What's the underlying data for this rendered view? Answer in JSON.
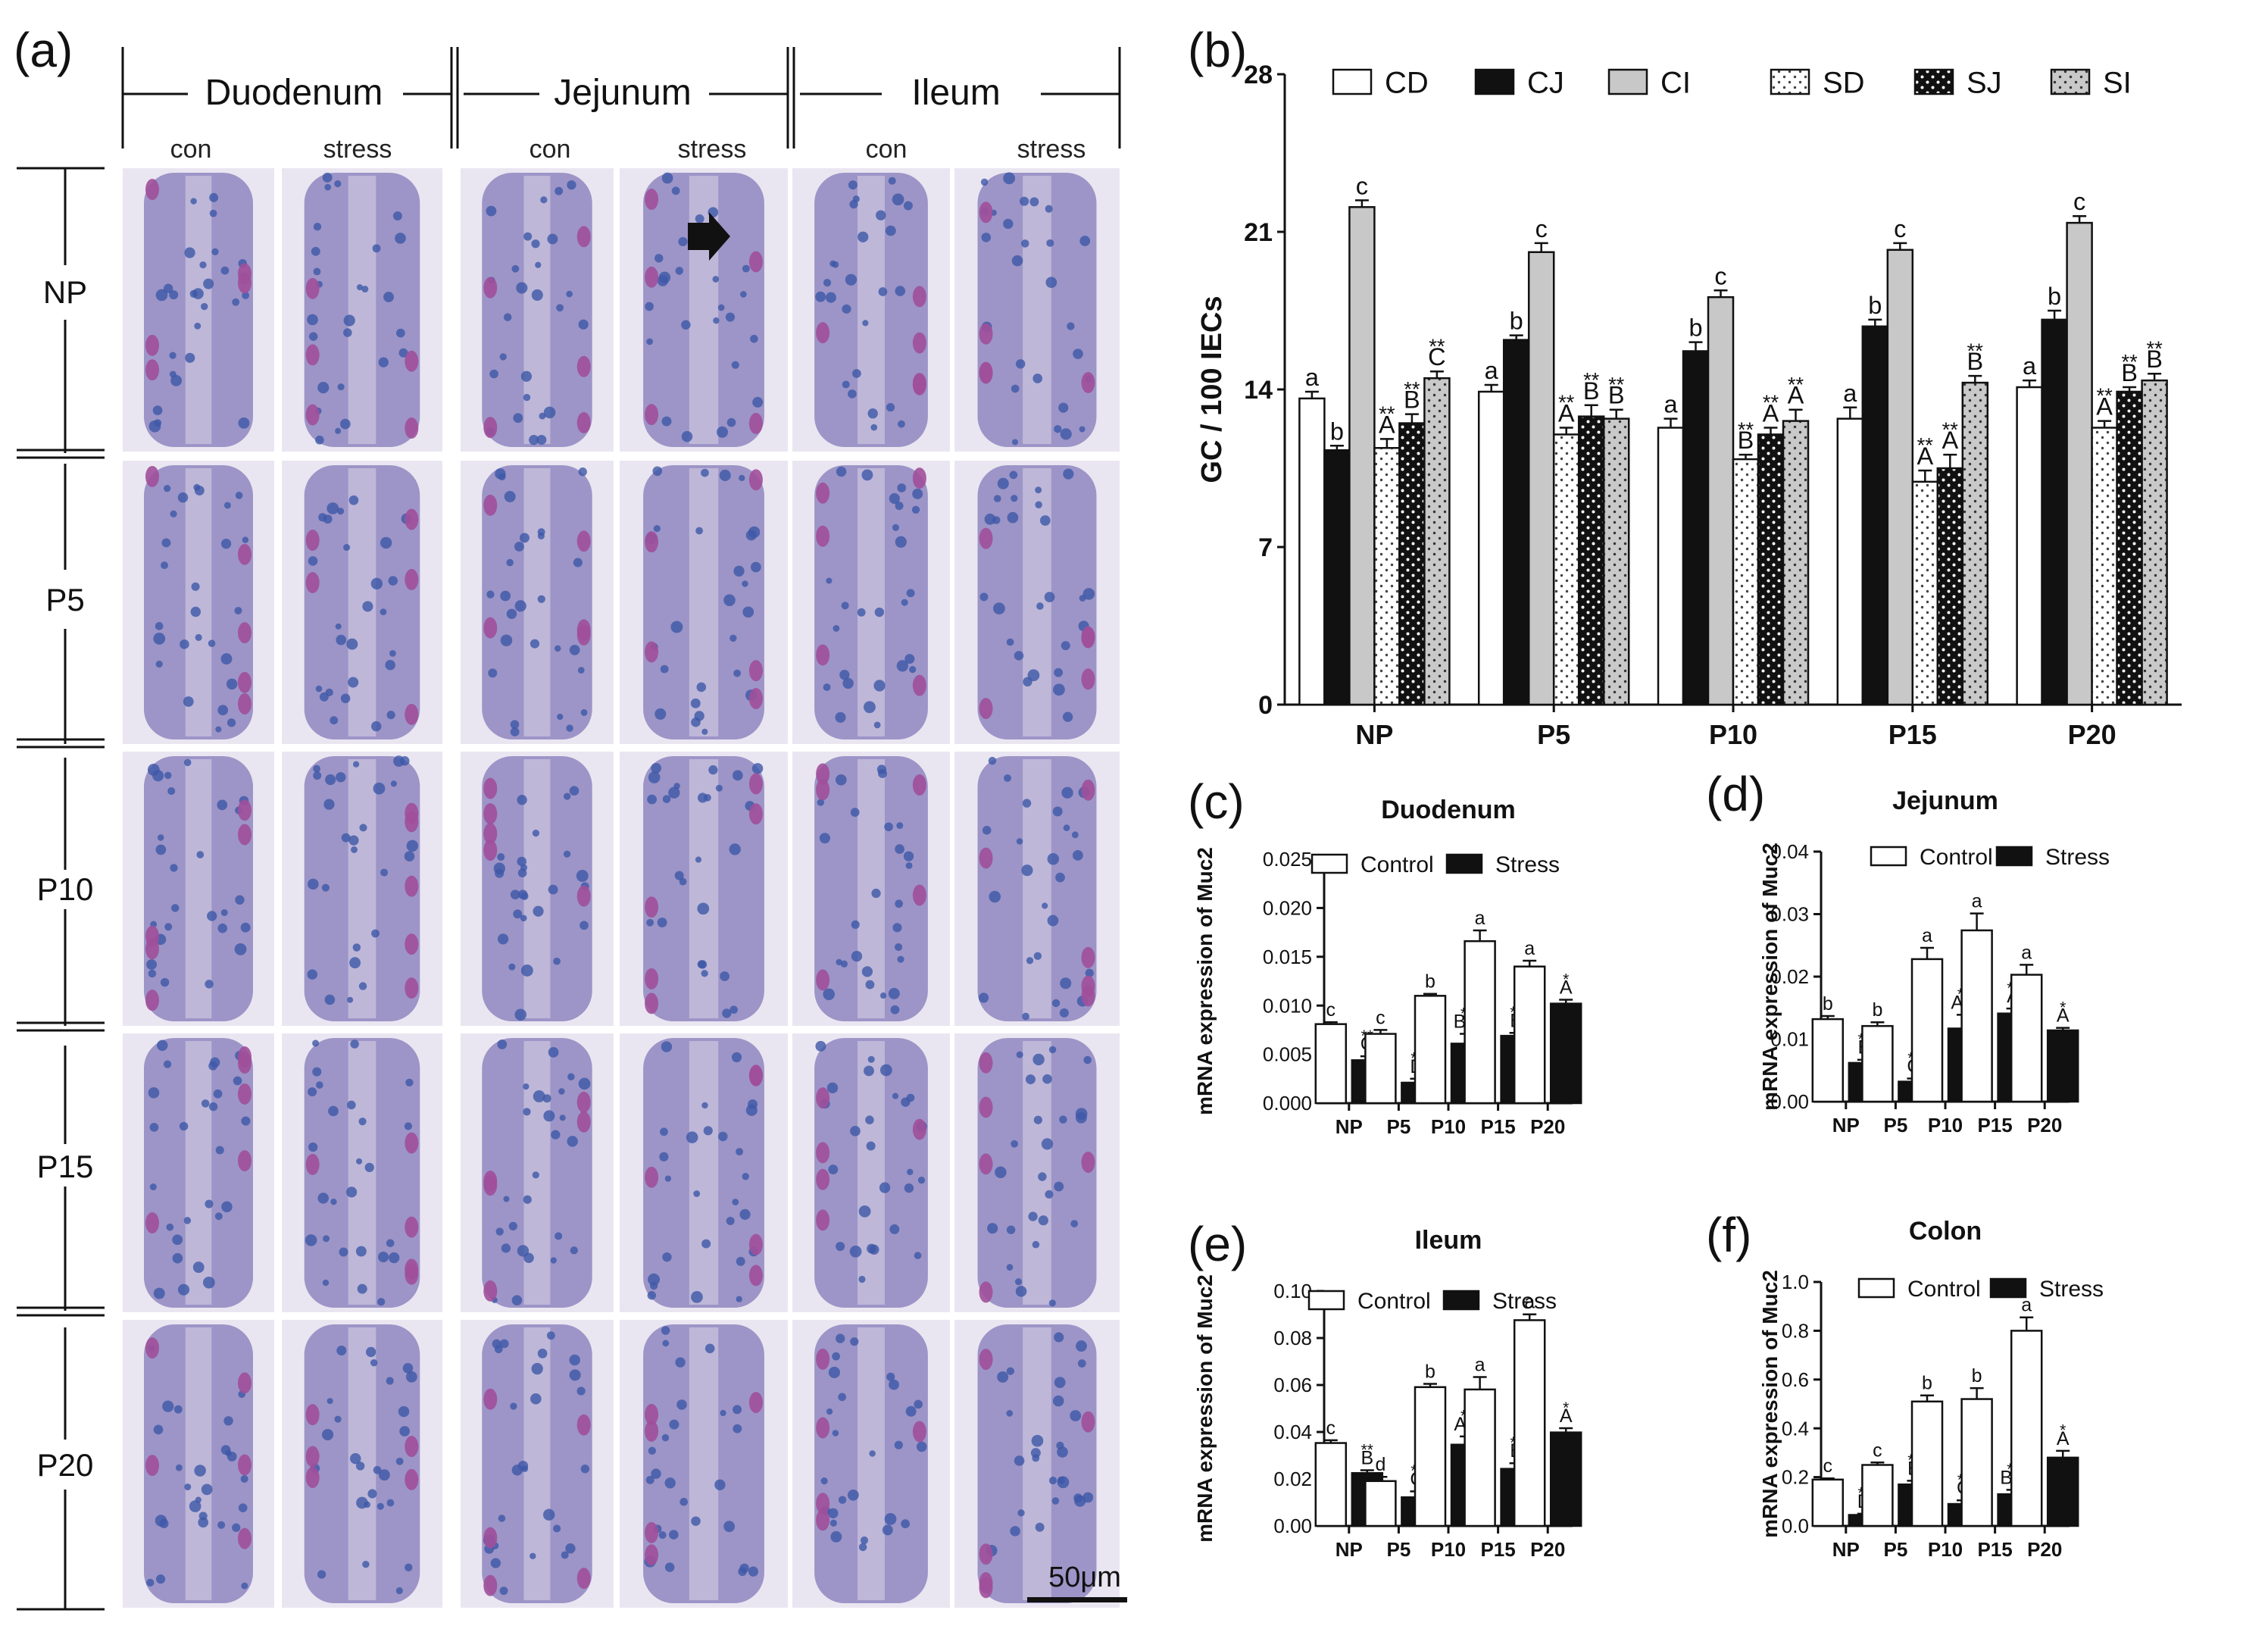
{
  "panel_a": {
    "label": "(a)",
    "segments": [
      "Duodenum",
      "Jejunum",
      "Ileum"
    ],
    "subcolumns": [
      "con",
      "stress",
      "con",
      "stress",
      "con",
      "stress"
    ],
    "rows": [
      "NP",
      "P5",
      "P10",
      "P15",
      "P20"
    ],
    "scale_bar": "50μm",
    "colors": {
      "tissue": "#8f86bf",
      "nuclei": "#3d58a8",
      "goblet": "#a04f9a",
      "lumen": "#eae6f1"
    }
  },
  "chart_data": [
    {
      "id": "b",
      "panel_label": "(b)",
      "type": "bar",
      "title": "",
      "xlabel": "",
      "ylabel": "GC / 100 IECs",
      "ylim": [
        0,
        28
      ],
      "yticks": [
        "0",
        "7",
        "14",
        "21",
        "28"
      ],
      "categories": [
        "NP",
        "P5",
        "P10",
        "P15",
        "P20"
      ],
      "legend_position": "top",
      "series": [
        {
          "name": "CD",
          "fill": "white",
          "values": [
            13.6,
            13.9,
            12.3,
            12.7,
            14.1
          ],
          "errors": [
            0.3,
            0.3,
            0.4,
            0.5,
            0.3
          ],
          "labels": [
            "a",
            "a",
            "a",
            "a",
            "a"
          ]
        },
        {
          "name": "CJ",
          "fill": "black",
          "values": [
            11.3,
            16.2,
            15.7,
            16.8,
            17.1
          ],
          "errors": [
            0.2,
            0.2,
            0.4,
            0.3,
            0.4
          ],
          "labels": [
            "b",
            "b",
            "b",
            "b",
            "b"
          ]
        },
        {
          "name": "CI",
          "fill": "gray",
          "values": [
            22.1,
            20.1,
            18.1,
            20.2,
            21.4
          ],
          "errors": [
            0.3,
            0.4,
            0.3,
            0.3,
            0.3
          ],
          "labels": [
            "c",
            "c",
            "c",
            "c",
            "c"
          ]
        },
        {
          "name": "SD",
          "fill": "dots",
          "values": [
            11.4,
            12.0,
            10.9,
            9.9,
            12.3
          ],
          "errors": [
            0.4,
            0.3,
            0.2,
            0.5,
            0.3
          ],
          "labels": [
            "**\nA",
            "**\nA",
            "**\nB",
            "**\nA",
            "**\nA"
          ]
        },
        {
          "name": "SJ",
          "fill": "darkdots",
          "values": [
            12.5,
            12.8,
            12.0,
            10.5,
            13.9
          ],
          "errors": [
            0.4,
            0.5,
            0.3,
            0.6,
            0.2
          ],
          "labels": [
            "**\nB",
            "**\nB",
            "**\nA",
            "**\nA",
            "**\nB"
          ]
        },
        {
          "name": "SI",
          "fill": "graydots",
          "values": [
            14.5,
            12.7,
            12.6,
            14.3,
            14.4
          ],
          "errors": [
            0.3,
            0.4,
            0.5,
            0.3,
            0.3
          ],
          "labels": [
            "**\nC",
            "**\nB",
            "**\nA",
            "**\nB",
            "**\nB"
          ]
        }
      ]
    },
    {
      "id": "c",
      "panel_label": "(c)",
      "type": "bar",
      "title": "Duodenum",
      "xlabel": "",
      "ylabel": "mRNA expression of Muc2",
      "ylim": [
        0,
        0.025
      ],
      "yticks": [
        "0.000",
        "0.005",
        "0.010",
        "0.015",
        "0.020",
        "0.025"
      ],
      "categories": [
        "NP",
        "P5",
        "P10",
        "P15",
        "P20"
      ],
      "legend_position": "top",
      "series": [
        {
          "name": "Control",
          "fill": "white",
          "values": [
            0.0081,
            0.0071,
            0.011,
            0.0166,
            0.014
          ],
          "errors": [
            0.0002,
            0.0004,
            0.0002,
            0.0011,
            0.0006
          ],
          "labels": [
            "c",
            "c",
            "b",
            "a",
            "a"
          ]
        },
        {
          "name": "Stress",
          "fill": "black",
          "values": [
            0.0044,
            0.0021,
            0.0061,
            0.0069,
            0.0102
          ],
          "errors": [
            0.0004,
            0.0004,
            0.001,
            0.0003,
            0.0004
          ],
          "labels": [
            "**\nC",
            "**\nD",
            "**\nBC",
            "**\nB",
            "*\nA"
          ]
        }
      ]
    },
    {
      "id": "d",
      "panel_label": "(d)",
      "type": "bar",
      "title": "Jejunum",
      "xlabel": "",
      "ylabel": "mRNA expression of Muc2",
      "ylim": [
        0,
        0.04
      ],
      "yticks": [
        "0.00",
        "0.01",
        "0.02",
        "0.03",
        "0.04"
      ],
      "categories": [
        "NP",
        "P5",
        "P10",
        "P15",
        "P20"
      ],
      "legend_position": "top",
      "series": [
        {
          "name": "Control",
          "fill": "white",
          "values": [
            0.0132,
            0.0121,
            0.0228,
            0.0274,
            0.0203
          ],
          "errors": [
            0.0005,
            0.0006,
            0.0018,
            0.0027,
            0.0016
          ],
          "labels": [
            "b",
            "b",
            "a",
            "a",
            "a"
          ]
        },
        {
          "name": "Stress",
          "fill": "black",
          "values": [
            0.0062,
            0.0032,
            0.0117,
            0.0141,
            0.0114
          ],
          "errors": [
            0.0005,
            0.0005,
            0.0022,
            0.0008,
            0.0004
          ],
          "labels": [
            "**\nB",
            "**\nC",
            "**\nAB",
            "**\nA",
            "*\nA"
          ]
        }
      ]
    },
    {
      "id": "e",
      "panel_label": "(e)",
      "type": "bar",
      "title": "Ileum",
      "xlabel": "",
      "ylabel": "mRNA expression of Muc2",
      "ylim": [
        0,
        0.1
      ],
      "yticks": [
        "0.00",
        "0.02",
        "0.04",
        "0.06",
        "0.08",
        "0.10"
      ],
      "categories": [
        "NP",
        "P5",
        "P10",
        "P15",
        "P20"
      ],
      "legend_position": "top",
      "series": [
        {
          "name": "Control",
          "fill": "white",
          "values": [
            0.0353,
            0.0191,
            0.0591,
            0.0581,
            0.0876
          ],
          "errors": [
            0.0012,
            0.0018,
            0.0014,
            0.0053,
            0.0025
          ],
          "labels": [
            "c",
            "d",
            "b",
            "a",
            "a"
          ]
        },
        {
          "name": "Stress",
          "fill": "black",
          "values": [
            0.0225,
            0.0122,
            0.0346,
            0.0243,
            0.0398
          ],
          "errors": [
            0.0012,
            0.0025,
            0.0035,
            0.0024,
            0.0018
          ],
          "labels": [
            "**\nB",
            "**\nC",
            "**\nAB",
            "**\nB",
            "*\nA"
          ]
        }
      ]
    },
    {
      "id": "f",
      "panel_label": "(f)",
      "type": "bar",
      "title": "Colon",
      "xlabel": "",
      "ylabel": "mRNA expression of Muc2",
      "ylim": [
        0,
        1.0
      ],
      "yticks": [
        "0.0",
        "0.2",
        "0.4",
        "0.6",
        "0.8",
        "1.0"
      ],
      "categories": [
        "NP",
        "P5",
        "P10",
        "P15",
        "P20"
      ],
      "legend_position": "top",
      "series": [
        {
          "name": "Control",
          "fill": "white",
          "values": [
            0.19,
            0.25,
            0.51,
            0.52,
            0.8
          ],
          "errors": [
            0.005,
            0.01,
            0.025,
            0.045,
            0.055
          ],
          "labels": [
            "c",
            "c",
            "b",
            "b",
            "a"
          ]
        },
        {
          "name": "Stress",
          "fill": "black",
          "values": [
            0.045,
            0.17,
            0.09,
            0.13,
            0.28
          ],
          "errors": [
            0.005,
            0.015,
            0.015,
            0.018,
            0.028
          ],
          "labels": [
            "**\nD",
            "**\nB",
            "**\nC",
            "**\nBC",
            "*\nA"
          ]
        }
      ]
    }
  ]
}
